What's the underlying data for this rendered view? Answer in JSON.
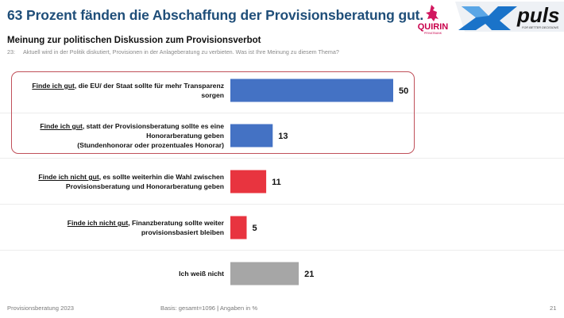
{
  "header": {
    "title": "63 Prozent fänden die Abschaffung der Provisionsberatung gut.",
    "subtitle": "Meinung zur politischen Diskussion zum Provisionsverbot",
    "question_number": "23:",
    "question_text": "Aktuell wird in der Politik diskutiert, Provisionen in der Anlageberatung zu verbieten. Was ist Ihre Meinung zu diesem Thema?"
  },
  "logos": {
    "quirin": {
      "name": "QUIRIN",
      "sub": "PRIVATBANK",
      "color": "#c8004b"
    },
    "xpuls": {
      "name": "puls",
      "tagline": "FOR BETTER DECISIONS",
      "color": "#1a5fa8"
    }
  },
  "colors": {
    "positive": "#4472c4",
    "negative": "#e8343f",
    "neutral": "#a6a6a6",
    "highlight_border": "#c0505a"
  },
  "chart_data": {
    "type": "bar",
    "orientation": "horizontal",
    "title": "Meinung zur politischen Diskussion zum Provisionsverbot",
    "xlabel": "",
    "ylabel": "",
    "unit": "%",
    "xlim": [
      0,
      50
    ],
    "grid": false,
    "categories": [
      {
        "emphasis": "Finde ich gut",
        "rest_lines": [
          ", die EU/ der Staat sollte für mehr Transparenz",
          "sorgen"
        ]
      },
      {
        "emphasis": "Finde ich gut",
        "rest_lines": [
          ", statt der Provisionsberatung sollte es eine",
          "Honorarberatung geben",
          "(Stundenhonorar oder prozentuales Honorar)"
        ]
      },
      {
        "emphasis": "Finde ich nicht gut",
        "rest_lines": [
          ", es sollte weiterhin die Wahl zwischen",
          "Provisionsberatung und Honorarberatung geben"
        ]
      },
      {
        "emphasis": "Finde ich nicht gut",
        "rest_lines": [
          ", Finanzberatung sollte weiter",
          "provisionsbasiert bleiben"
        ]
      },
      {
        "emphasis": "",
        "rest_lines": [
          "Ich weiß nicht"
        ]
      }
    ],
    "values": [
      50,
      13,
      11,
      5,
      21
    ],
    "bar_colors": [
      "positive",
      "positive",
      "negative",
      "negative",
      "neutral"
    ],
    "highlighted_rows": [
      0,
      1
    ]
  },
  "footer": {
    "left": "Provisionsberatung 2023",
    "center_basis": "Basis: gesamt=1096",
    "center_unit": "Angaben in %",
    "page": "21"
  }
}
